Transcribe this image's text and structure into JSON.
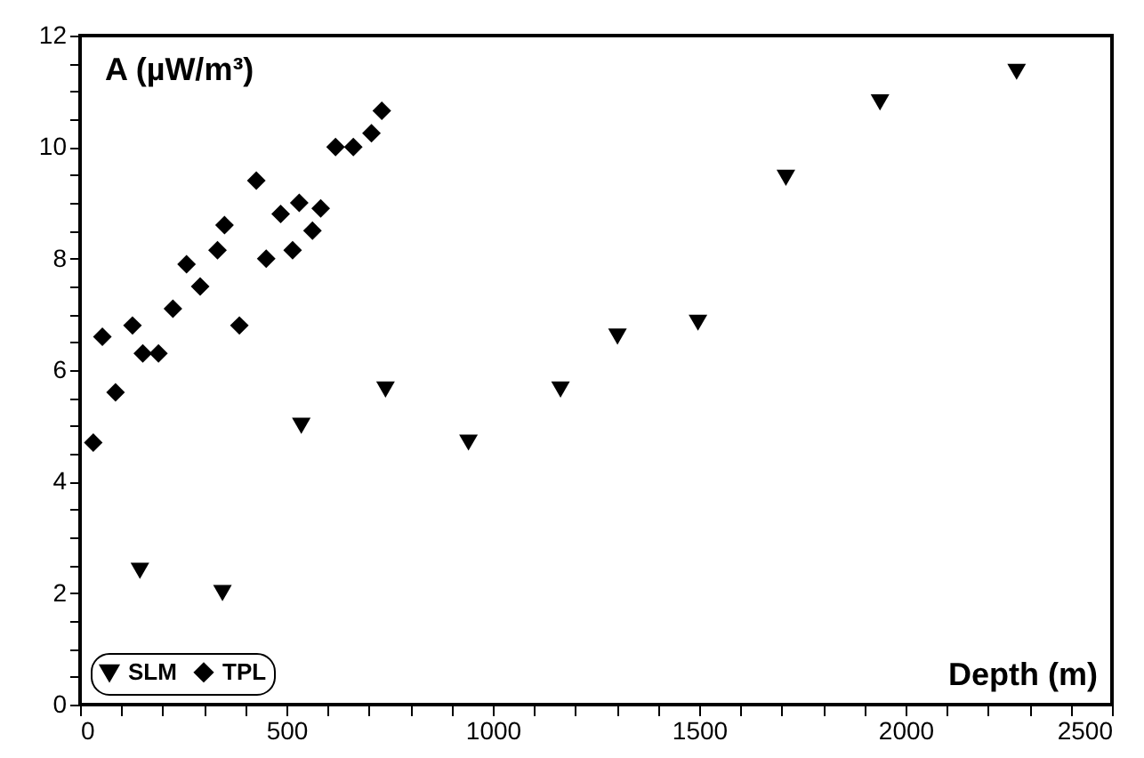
{
  "chart_data": {
    "type": "scatter",
    "xlabel": "Depth (m)",
    "ylabel": "A (µW/m³)",
    "xlim": [
      0,
      2500
    ],
    "ylim": [
      0,
      12
    ],
    "xticks": [
      0,
      {
        "value": 100,
        "label": null
      },
      {
        "value": 200,
        "label": null
      },
      {
        "value": 300,
        "label": null
      },
      {
        "value": 400,
        "label": null
      },
      500,
      {
        "value": 600,
        "label": null
      },
      {
        "value": 700,
        "label": null
      },
      {
        "value": 800,
        "label": null
      },
      {
        "value": 900,
        "label": null
      },
      1000,
      {
        "value": 1100,
        "label": null
      },
      {
        "value": 1200,
        "label": null
      },
      {
        "value": 1300,
        "label": null
      },
      {
        "value": 1400,
        "label": null
      },
      1500,
      {
        "value": 1600,
        "label": null
      },
      {
        "value": 1700,
        "label": null
      },
      {
        "value": 1800,
        "label": null
      },
      {
        "value": 1900,
        "label": null
      },
      2000,
      {
        "value": 2100,
        "label": null
      },
      {
        "value": 2200,
        "label": null
      },
      {
        "value": 2300,
        "label": null
      },
      {
        "value": 2400,
        "label": null
      },
      2500
    ],
    "yticks": [
      0,
      {
        "value": 0.5,
        "label": null
      },
      {
        "value": 1,
        "label": null
      },
      {
        "value": 1.5,
        "label": null
      },
      2,
      {
        "value": 2.5,
        "label": null
      },
      {
        "value": 3,
        "label": null
      },
      {
        "value": 3.5,
        "label": null
      },
      4,
      {
        "value": 4.5,
        "label": null
      },
      {
        "value": 5,
        "label": null
      },
      {
        "value": 5.5,
        "label": null
      },
      6,
      {
        "value": 6.5,
        "label": null
      },
      {
        "value": 7,
        "label": null
      },
      {
        "value": 7.5,
        "label": null
      },
      8,
      {
        "value": 8.5,
        "label": null
      },
      {
        "value": 9,
        "label": null
      },
      {
        "value": 9.5,
        "label": null
      },
      10,
      {
        "value": 10.5,
        "label": null
      },
      {
        "value": 11,
        "label": null
      },
      {
        "value": 11.5,
        "label": null
      },
      12
    ],
    "grid": false,
    "legend": "bottom left",
    "series": [
      {
        "name": "SLM",
        "color": "#000000",
        "marker": "triangle",
        "x": [
          145,
          345,
          536,
          740,
          941,
          1164,
          1302,
          1497,
          1710,
          1938,
          2269
        ],
        "values": [
          2.4,
          2.0,
          5.0,
          5.65,
          4.7,
          5.65,
          6.6,
          6.85,
          9.45,
          10.8,
          11.35
        ]
      },
      {
        "name": "TPL",
        "color": "#000000",
        "marker": "diamond",
        "x": [
          32,
          54,
          86,
          127,
          152,
          190,
          225,
          258,
          291,
          333,
          350,
          386,
          427,
          451,
          486,
          515,
          531,
          563,
          583,
          619,
          662,
          706,
          731
        ],
        "values": [
          4.7,
          6.6,
          5.6,
          6.8,
          6.3,
          6.3,
          7.1,
          7.9,
          7.5,
          8.15,
          8.6,
          6.8,
          9.4,
          8.0,
          8.8,
          8.15,
          9.0,
          8.5,
          8.9,
          10.0,
          10.0,
          10.25,
          10.65
        ]
      }
    ]
  }
}
